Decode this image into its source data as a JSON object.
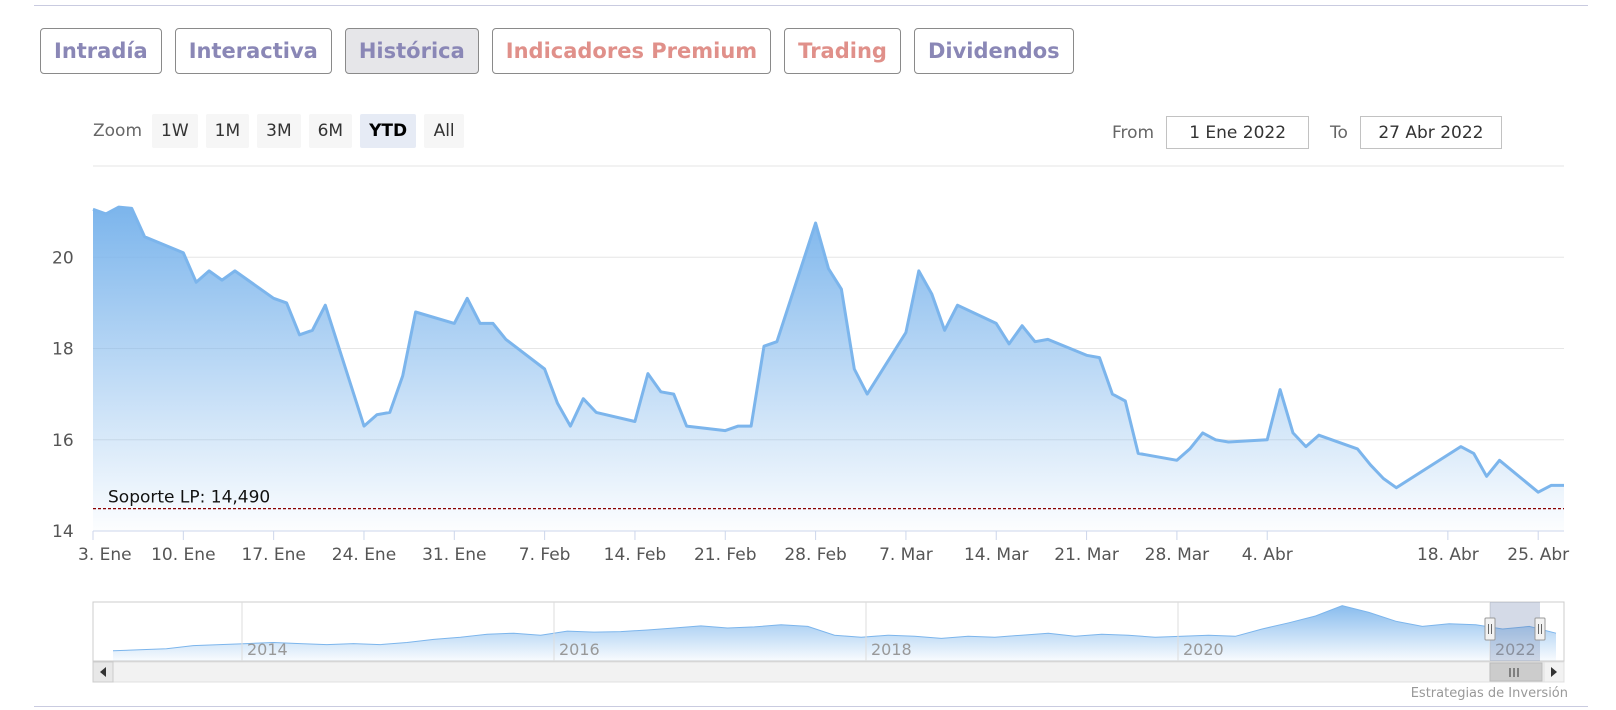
{
  "tabs": [
    {
      "label": "Intradía",
      "color": "purple",
      "active": false
    },
    {
      "label": "Interactiva",
      "color": "purple",
      "active": false
    },
    {
      "label": "Histórica",
      "color": "purple",
      "active": true
    },
    {
      "label": "Indicadores Premium",
      "color": "red",
      "active": false
    },
    {
      "label": "Trading",
      "color": "red",
      "active": false
    },
    {
      "label": "Dividendos",
      "color": "purple",
      "active": false
    }
  ],
  "zoom": {
    "label": "Zoom",
    "buttons": [
      "1W",
      "1M",
      "3M",
      "6M",
      "YTD",
      "All"
    ],
    "selected": "YTD"
  },
  "range": {
    "from_label": "From",
    "from_value": "1 Ene 2022",
    "to_label": "To",
    "to_value": "27 Abr 2022"
  },
  "credit": "Estrategias de Inversión",
  "colors": {
    "line": "#7cb5ec",
    "support": "#8b0000",
    "fill_top": "#7cb5ec",
    "fill_bottom": "#ffffff"
  },
  "chart_data": {
    "type": "area",
    "title": "",
    "xlabel": "",
    "ylabel": "",
    "ylim": [
      14,
      22
    ],
    "yticks": [
      14,
      16,
      18,
      20
    ],
    "xlim": [
      "2022-01-03",
      "2022-04-27"
    ],
    "xticks": [
      {
        "date": "2022-01-03",
        "label": "3. Ene"
      },
      {
        "date": "2022-01-10",
        "label": "10. Ene"
      },
      {
        "date": "2022-01-17",
        "label": "17. Ene"
      },
      {
        "date": "2022-01-24",
        "label": "24. Ene"
      },
      {
        "date": "2022-01-31",
        "label": "31. Ene"
      },
      {
        "date": "2022-02-07",
        "label": "7. Feb"
      },
      {
        "date": "2022-02-14",
        "label": "14. Feb"
      },
      {
        "date": "2022-02-21",
        "label": "21. Feb"
      },
      {
        "date": "2022-02-28",
        "label": "28. Feb"
      },
      {
        "date": "2022-03-07",
        "label": "7. Mar"
      },
      {
        "date": "2022-03-14",
        "label": "14. Mar"
      },
      {
        "date": "2022-03-21",
        "label": "21. Mar"
      },
      {
        "date": "2022-03-28",
        "label": "28. Mar"
      },
      {
        "date": "2022-04-04",
        "label": "4. Abr"
      },
      {
        "date": "2022-04-18",
        "label": "18. Abr"
      },
      {
        "date": "2022-04-25",
        "label": "25. Abr"
      }
    ],
    "grid": true,
    "support_line": {
      "label": "Soporte LP: 14,490",
      "value": 14.49
    },
    "series": [
      {
        "x": [
          "2022-01-03",
          "2022-01-04",
          "2022-01-05",
          "2022-01-06",
          "2022-01-07",
          "2022-01-10",
          "2022-01-11",
          "2022-01-12",
          "2022-01-13",
          "2022-01-14",
          "2022-01-17",
          "2022-01-18",
          "2022-01-19",
          "2022-01-20",
          "2022-01-21",
          "2022-01-24",
          "2022-01-25",
          "2022-01-26",
          "2022-01-27",
          "2022-01-28",
          "2022-01-31",
          "2022-02-01",
          "2022-02-02",
          "2022-02-03",
          "2022-02-04",
          "2022-02-07",
          "2022-02-08",
          "2022-02-09",
          "2022-02-10",
          "2022-02-11",
          "2022-02-14",
          "2022-02-15",
          "2022-02-16",
          "2022-02-17",
          "2022-02-18",
          "2022-02-21",
          "2022-02-22",
          "2022-02-23",
          "2022-02-24",
          "2022-02-25",
          "2022-02-28",
          "2022-03-01",
          "2022-03-02",
          "2022-03-03",
          "2022-03-04",
          "2022-03-07",
          "2022-03-08",
          "2022-03-09",
          "2022-03-10",
          "2022-03-11",
          "2022-03-14",
          "2022-03-15",
          "2022-03-16",
          "2022-03-17",
          "2022-03-18",
          "2022-03-21",
          "2022-03-22",
          "2022-03-23",
          "2022-03-24",
          "2022-03-25",
          "2022-03-28",
          "2022-03-29",
          "2022-03-30",
          "2022-03-31",
          "2022-04-01",
          "2022-04-04",
          "2022-04-05",
          "2022-04-06",
          "2022-04-07",
          "2022-04-08",
          "2022-04-11",
          "2022-04-12",
          "2022-04-13",
          "2022-04-14",
          "2022-04-19",
          "2022-04-20",
          "2022-04-21",
          "2022-04-22",
          "2022-04-25",
          "2022-04-26",
          "2022-04-27"
        ],
        "y": [
          21.05,
          20.95,
          21.1,
          21.07,
          20.45,
          20.1,
          19.45,
          19.7,
          19.5,
          19.7,
          19.1,
          19.0,
          18.3,
          18.4,
          18.95,
          16.3,
          16.55,
          16.6,
          17.4,
          18.8,
          18.55,
          19.1,
          18.55,
          18.55,
          18.2,
          17.55,
          16.8,
          16.3,
          16.9,
          16.6,
          16.4,
          17.45,
          17.05,
          17.0,
          16.3,
          16.2,
          16.3,
          16.3,
          18.05,
          18.15,
          20.75,
          19.75,
          19.3,
          17.55,
          17.0,
          18.35,
          19.7,
          19.2,
          18.4,
          18.95,
          18.55,
          18.1,
          18.5,
          18.15,
          18.2,
          17.85,
          17.8,
          17.0,
          16.85,
          15.7,
          15.55,
          15.8,
          16.15,
          16.0,
          15.95,
          16.0,
          17.1,
          16.15,
          15.85,
          16.1,
          15.8,
          15.45,
          15.15,
          14.95,
          15.85,
          15.7,
          15.2,
          15.55,
          14.85,
          15.0,
          15.0
        ]
      }
    ],
    "navigator": {
      "labels": [
        "2014",
        "2016",
        "2018",
        "2020",
        "2022"
      ],
      "profile": [
        0.08,
        0.1,
        0.12,
        0.18,
        0.2,
        0.22,
        0.24,
        0.22,
        0.2,
        0.22,
        0.2,
        0.24,
        0.3,
        0.34,
        0.4,
        0.42,
        0.38,
        0.46,
        0.44,
        0.45,
        0.48,
        0.52,
        0.56,
        0.52,
        0.54,
        0.58,
        0.55,
        0.38,
        0.34,
        0.38,
        0.36,
        0.32,
        0.36,
        0.34,
        0.38,
        0.42,
        0.36,
        0.4,
        0.38,
        0.34,
        0.36,
        0.38,
        0.36,
        0.5,
        0.62,
        0.75,
        0.95,
        0.82,
        0.65,
        0.55,
        0.6,
        0.58,
        0.5,
        0.55,
        0.42
      ]
    }
  }
}
